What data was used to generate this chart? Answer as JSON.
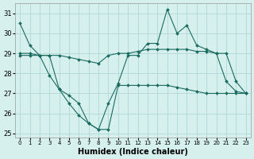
{
  "xlabel": "Humidex (Indice chaleur)",
  "background_color": "#d6f0ee",
  "grid_color": "#b0d8d4",
  "line_color": "#1a6b60",
  "xlim": [
    -0.5,
    23.5
  ],
  "ylim": [
    24.8,
    31.5
  ],
  "yticks": [
    25,
    26,
    27,
    28,
    29,
    30,
    31
  ],
  "xticks": [
    0,
    1,
    2,
    3,
    4,
    5,
    6,
    7,
    8,
    9,
    10,
    11,
    12,
    13,
    14,
    15,
    16,
    17,
    18,
    19,
    20,
    21,
    22,
    23
  ],
  "series": [
    [
      30.5,
      29.4,
      28.9,
      28.9,
      27.2,
      26.5,
      25.9,
      25.5,
      25.2,
      26.5,
      27.5,
      28.9,
      28.9,
      29.5,
      29.5,
      31.2,
      30.0,
      30.4,
      29.4,
      29.2,
      29.0,
      27.6,
      27.1,
      27.0
    ],
    [
      29.0,
      29.0,
      28.9,
      28.9,
      28.9,
      28.8,
      28.7,
      28.6,
      28.5,
      28.9,
      29.0,
      29.0,
      29.1,
      29.2,
      29.2,
      29.2,
      29.2,
      29.2,
      29.1,
      29.1,
      29.0,
      29.0,
      27.6,
      27.0
    ],
    [
      28.9,
      28.9,
      28.9,
      27.9,
      27.2,
      26.9,
      26.5,
      25.5,
      25.2,
      25.2,
      27.4,
      27.4,
      27.4,
      27.4,
      27.4,
      27.4,
      27.3,
      27.2,
      27.1,
      27.0,
      27.0,
      27.0,
      27.0,
      27.0
    ]
  ]
}
